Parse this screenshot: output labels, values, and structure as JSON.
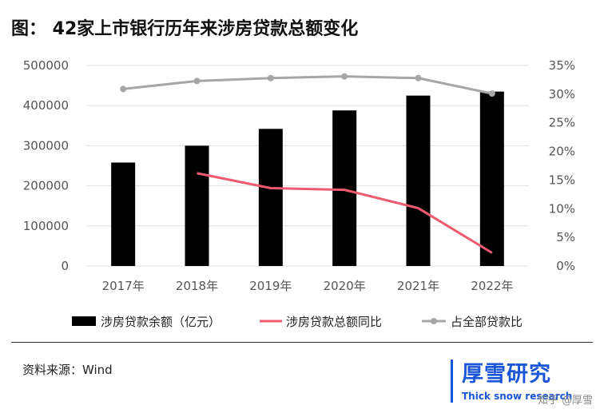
{
  "title": "图：  42家上市银行历年来涉房贷款总额变化",
  "source": "资料来源：Wind",
  "logo": {
    "name": "厚雪研究",
    "subtitle": "Thick snow research"
  },
  "credit": "知乎 @厚雪",
  "colors": {
    "bar": "#000000",
    "growth_line": "#ef5a6f",
    "share_line": "#a6a6a6",
    "gridline": "#e0e0e0",
    "brand": "#1a56d6"
  },
  "chart_data": {
    "type": "bar",
    "categories": [
      "2017年",
      "2018年",
      "2019年",
      "2020年",
      "2021年",
      "2022年"
    ],
    "y_left": {
      "min": 0,
      "max": 500000,
      "step": 100000,
      "ticks": [
        "0",
        "100000",
        "200000",
        "300000",
        "400000",
        "500000"
      ]
    },
    "y_right": {
      "min": 0,
      "max": 35,
      "step": 5,
      "ticks": [
        "0%",
        "5%",
        "10%",
        "15%",
        "20%",
        "25%",
        "30%",
        "35%"
      ]
    },
    "grid": true,
    "legend_position": "bottom",
    "series": [
      {
        "name": "涉房贷款余额（亿元）",
        "type": "bar",
        "axis": "left",
        "values": [
          258000,
          300000,
          342000,
          388000,
          425000,
          435000
        ]
      },
      {
        "name": "涉房贷款总额同比",
        "type": "line",
        "axis": "right",
        "values": [
          null,
          16.2,
          13.6,
          13.3,
          10.1,
          2.3
        ]
      },
      {
        "name": "占全部贷款比",
        "type": "line",
        "axis": "right",
        "values": [
          30.9,
          32.3,
          32.8,
          33.1,
          32.8,
          30.1
        ]
      }
    ]
  }
}
